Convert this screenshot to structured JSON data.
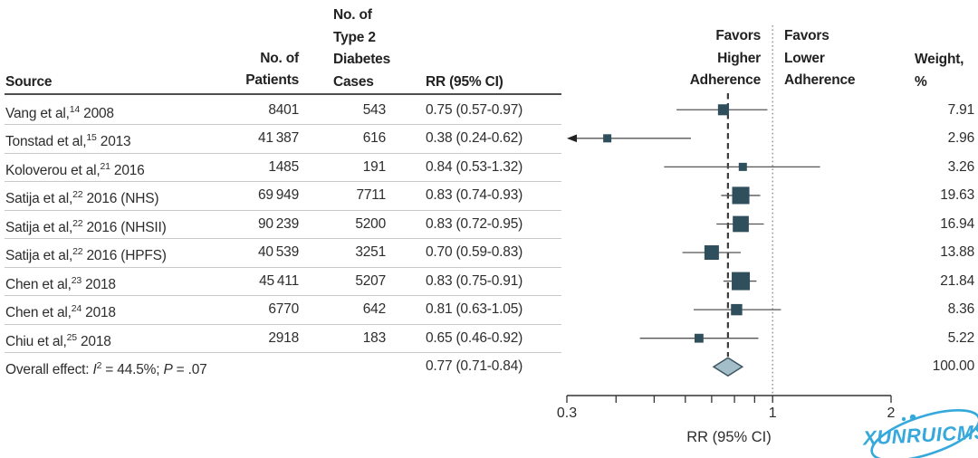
{
  "figure": {
    "columns": {
      "source": "Source",
      "patients_lines": [
        "No. of",
        "Patients"
      ],
      "cases_lines": [
        "No. of",
        "Type 2",
        "Diabetes",
        "Cases"
      ],
      "rr": "RR (95% CI)",
      "favors_higher_lines": [
        "Favors",
        "Higher",
        "Adherence"
      ],
      "favors_lower_lines": [
        "Favors",
        "Lower",
        "Adherence"
      ],
      "weight_lines": [
        "Weight,",
        "%"
      ]
    },
    "watermark": "XUNRUICMS"
  },
  "chart_data": {
    "type": "forest",
    "x_scale": "log",
    "xlabel": "RR (95% CI)",
    "x_range": [
      0.3,
      2
    ],
    "x_ticks_labeled": [
      "0.3",
      "1",
      "2"
    ],
    "x_minor_ticks": [
      0.4,
      0.5,
      0.6,
      0.7,
      0.8,
      0.9
    ],
    "null_line": 1,
    "overall_line": 0.77,
    "colors": {
      "marker": "#2f4f5d",
      "diamond_fill": "#a4bec9",
      "diamond_stroke": "#3c5560",
      "ci_line": "#555555",
      "dashed_line": "#3c3c3c",
      "dotted_line": "#8f8f8f",
      "axis": "#333333",
      "watermark": "#36a9dc"
    },
    "studies": [
      {
        "source": "Vang et al,",
        "ref": "14",
        "suffix": " 2008",
        "patients": "8401",
        "cases": "543",
        "rr": 0.75,
        "ci_low": 0.57,
        "ci_high": 0.97,
        "rr_text": "0.75 (0.57-0.97)",
        "weight": "7.91"
      },
      {
        "source": "Tonstad et al,",
        "ref": "15",
        "suffix": " 2013",
        "patients": "41 387",
        "cases": "616",
        "rr": 0.38,
        "ci_low": 0.24,
        "ci_high": 0.62,
        "rr_text": "0.38 (0.24-0.62)",
        "weight": "2.96",
        "ci_low_offscale": true
      },
      {
        "source": "Koloverou et al,",
        "ref": "21",
        "suffix": " 2016",
        "patients": "1485",
        "cases": "191",
        "rr": 0.84,
        "ci_low": 0.53,
        "ci_high": 1.32,
        "rr_text": "0.84 (0.53-1.32)",
        "weight": "3.26"
      },
      {
        "source": "Satija et al,",
        "ref": "22",
        "suffix": " 2016 (NHS)",
        "patients": "69 949",
        "cases": "7711",
        "rr": 0.83,
        "ci_low": 0.74,
        "ci_high": 0.93,
        "rr_text": "0.83 (0.74-0.93)",
        "weight": "19.63"
      },
      {
        "source": "Satija et al,",
        "ref": "22",
        "suffix": " 2016 (NHSII)",
        "patients": "90 239",
        "cases": "5200",
        "rr": 0.83,
        "ci_low": 0.72,
        "ci_high": 0.95,
        "rr_text": "0.83 (0.72-0.95)",
        "weight": "16.94"
      },
      {
        "source": "Satija et al,",
        "ref": "22",
        "suffix": " 2016 (HPFS)",
        "patients": "40 539",
        "cases": "3251",
        "rr": 0.7,
        "ci_low": 0.59,
        "ci_high": 0.83,
        "rr_text": "0.70 (0.59-0.83)",
        "weight": "13.88"
      },
      {
        "source": "Chen et al,",
        "ref": "23",
        "suffix": " 2018",
        "patients": "45 411",
        "cases": "5207",
        "rr": 0.83,
        "ci_low": 0.75,
        "ci_high": 0.91,
        "rr_text": "0.83 (0.75-0.91)",
        "weight": "21.84"
      },
      {
        "source": "Chen et al,",
        "ref": "24",
        "suffix": " 2018",
        "patients": "6770",
        "cases": "642",
        "rr": 0.81,
        "ci_low": 0.63,
        "ci_high": 1.05,
        "rr_text": "0.81 (0.63-1.05)",
        "weight": "8.36"
      },
      {
        "source": "Chiu et al,",
        "ref": "25",
        "suffix": " 2018",
        "patients": "2918",
        "cases": "183",
        "rr": 0.65,
        "ci_low": 0.46,
        "ci_high": 0.92,
        "rr_text": "0.65 (0.46-0.92)",
        "weight": "5.22"
      }
    ],
    "overall": {
      "label_pre": "Overall effect: ",
      "stat_i": "I",
      "stat_i_sup": "2",
      "label_mid": " = 44.5%; ",
      "stat_p": "P",
      "label_post": " = .07",
      "rr": 0.77,
      "ci_low": 0.71,
      "ci_high": 0.84,
      "rr_text": "0.77 (0.71-0.84)",
      "weight": "100.00"
    }
  }
}
